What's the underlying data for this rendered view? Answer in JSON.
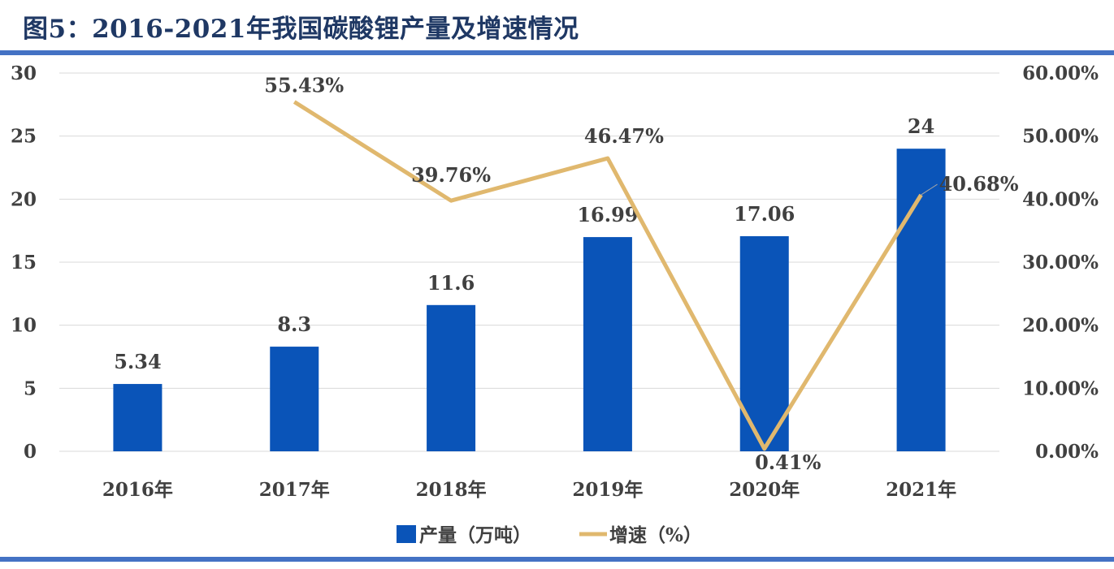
{
  "title": "图5：2016-2021年我国碳酸锂产量及增速情况",
  "colors": {
    "title": "#1F3864",
    "rule": "#4472C4",
    "bar": "#0A54B8",
    "line": "#E0B86E",
    "grid": "#D9D9D9",
    "text": "#404040"
  },
  "chart_data": {
    "type": "bar",
    "categories": [
      "2016年",
      "2017年",
      "2018年",
      "2019年",
      "2020年",
      "2021年"
    ],
    "series": [
      {
        "name": "产量（万吨）",
        "type": "bar",
        "axis": "left",
        "values": [
          5.34,
          8.3,
          11.6,
          16.99,
          17.06,
          24
        ],
        "labels": [
          "5.34",
          "8.3",
          "11.6",
          "16.99",
          "17.06",
          "24"
        ]
      },
      {
        "name": "增速（%）",
        "type": "line",
        "axis": "right",
        "values": [
          null,
          55.43,
          39.76,
          46.47,
          0.41,
          40.68
        ],
        "labels": [
          "",
          "55.43%",
          "39.76%",
          "46.47%",
          "0.41%",
          "40.68%"
        ]
      }
    ],
    "ylim_left": [
      0,
      30
    ],
    "yticks_left": [
      "0",
      "5",
      "10",
      "15",
      "20",
      "25",
      "30"
    ],
    "ylim_right": [
      0,
      60
    ],
    "yticks_right": [
      "0.00%",
      "10.00%",
      "20.00%",
      "30.00%",
      "40.00%",
      "50.00%",
      "60.00%"
    ],
    "grid": true,
    "legend_position": "bottom"
  }
}
